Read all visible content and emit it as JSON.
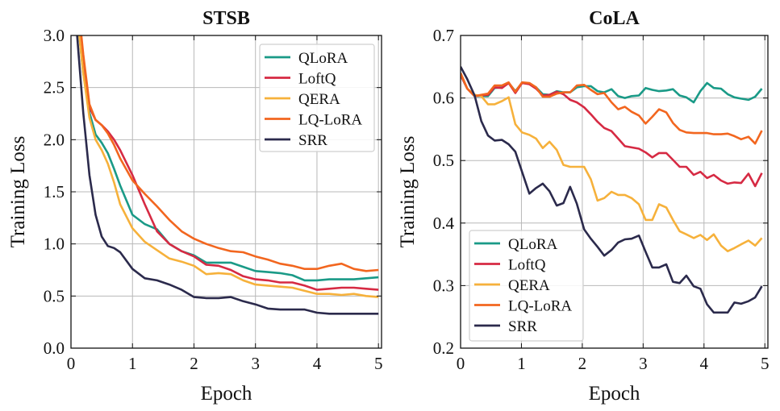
{
  "chart_data": [
    {
      "type": "line",
      "title": "STSB",
      "xlabel": "Epoch",
      "ylabel": "Training Loss",
      "xlim": [
        0,
        5.05
      ],
      "ylim": [
        0,
        3.0
      ],
      "xticks": [
        0,
        1,
        2,
        3,
        4,
        5
      ],
      "xtick_labels": [
        "0",
        "1",
        "2",
        "3",
        "4",
        "5"
      ],
      "yticks": [
        0,
        0.5,
        1.0,
        1.5,
        2.0,
        2.5,
        3.0
      ],
      "ytick_labels": [
        "0.0",
        "0.5",
        "1.0",
        "1.5",
        "2.0",
        "2.5",
        "3.0"
      ],
      "grid": true,
      "legend_position": "top-right",
      "x": [
        0.1,
        0.2,
        0.3,
        0.4,
        0.5,
        0.6,
        0.7,
        0.8,
        1.0,
        1.2,
        1.4,
        1.6,
        1.8,
        2.0,
        2.2,
        2.4,
        2.6,
        2.8,
        3.0,
        3.2,
        3.4,
        3.6,
        3.8,
        4.0,
        4.2,
        4.4,
        4.6,
        4.8,
        5.0
      ],
      "series": [
        {
          "name": "QLoRA",
          "color": "#1a9a87",
          "values": [
            3.2,
            2.64,
            2.26,
            2.05,
            1.97,
            1.87,
            1.72,
            1.56,
            1.28,
            1.19,
            1.14,
            1.0,
            0.93,
            0.89,
            0.82,
            0.82,
            0.82,
            0.78,
            0.74,
            0.73,
            0.72,
            0.7,
            0.65,
            0.65,
            0.66,
            0.66,
            0.66,
            0.67,
            0.68
          ]
        },
        {
          "name": "LoftQ",
          "color": "#d62a43",
          "values": [
            3.3,
            2.77,
            2.31,
            2.19,
            2.14,
            2.08,
            2.0,
            1.9,
            1.66,
            1.38,
            1.12,
            1.0,
            0.93,
            0.88,
            0.8,
            0.79,
            0.75,
            0.69,
            0.66,
            0.65,
            0.63,
            0.63,
            0.6,
            0.56,
            0.57,
            0.58,
            0.58,
            0.57,
            0.56
          ]
        },
        {
          "name": "QERA",
          "color": "#f6b13b",
          "values": [
            3.2,
            2.64,
            2.21,
            2.0,
            1.9,
            1.77,
            1.59,
            1.38,
            1.15,
            1.02,
            0.94,
            0.86,
            0.83,
            0.79,
            0.71,
            0.72,
            0.71,
            0.65,
            0.61,
            0.6,
            0.59,
            0.58,
            0.55,
            0.52,
            0.52,
            0.51,
            0.52,
            0.5,
            0.49
          ]
        },
        {
          "name": "LQ-LoRA",
          "color": "#f2661f",
          "values": [
            3.4,
            2.82,
            2.34,
            2.19,
            2.14,
            2.06,
            1.95,
            1.82,
            1.61,
            1.48,
            1.36,
            1.23,
            1.12,
            1.05,
            1.0,
            0.96,
            0.93,
            0.92,
            0.88,
            0.85,
            0.81,
            0.79,
            0.76,
            0.76,
            0.79,
            0.81,
            0.76,
            0.74,
            0.75
          ]
        },
        {
          "name": "SRR",
          "color": "#2b2a4c",
          "values": [
            3.0,
            2.26,
            1.66,
            1.28,
            1.07,
            0.98,
            0.96,
            0.92,
            0.76,
            0.67,
            0.65,
            0.61,
            0.56,
            0.49,
            0.48,
            0.48,
            0.49,
            0.45,
            0.42,
            0.38,
            0.37,
            0.37,
            0.37,
            0.34,
            0.33,
            0.33,
            0.33,
            0.33,
            0.33
          ]
        }
      ]
    },
    {
      "type": "line",
      "title": "CoLA",
      "xlabel": "Epoch",
      "ylabel": "Training Loss",
      "xlim": [
        0,
        5.05
      ],
      "ylim": [
        0.2,
        0.7
      ],
      "xticks": [
        0,
        1,
        2,
        3,
        4,
        5
      ],
      "xtick_labels": [
        "0",
        "1",
        "2",
        "3",
        "4",
        "5"
      ],
      "yticks": [
        0.2,
        0.3,
        0.4,
        0.5,
        0.6,
        0.7
      ],
      "ytick_labels": [
        "0.2",
        "0.3",
        "0.4",
        "0.5",
        "0.6",
        "0.7"
      ],
      "grid": true,
      "legend_position": "bottom-left",
      "x": [
        0,
        0.11,
        0.23,
        0.34,
        0.45,
        0.56,
        0.68,
        0.79,
        0.9,
        1.01,
        1.13,
        1.24,
        1.35,
        1.46,
        1.58,
        1.69,
        1.8,
        1.91,
        2.03,
        2.14,
        2.25,
        2.36,
        2.48,
        2.59,
        2.7,
        2.81,
        2.93,
        3.04,
        3.15,
        3.26,
        3.38,
        3.49,
        3.6,
        3.71,
        3.83,
        3.94,
        4.05,
        4.16,
        4.28,
        4.39,
        4.5,
        4.61,
        4.73,
        4.84,
        4.95
      ],
      "series": [
        {
          "name": "QLoRA",
          "color": "#1a9a87",
          "values": [
            0.637,
            0.615,
            0.603,
            0.603,
            0.603,
            0.616,
            0.617,
            0.624,
            0.611,
            0.624,
            0.623,
            0.617,
            0.606,
            0.605,
            0.611,
            0.609,
            0.609,
            0.617,
            0.619,
            0.619,
            0.611,
            0.609,
            0.614,
            0.603,
            0.6,
            0.603,
            0.604,
            0.616,
            0.613,
            0.611,
            0.612,
            0.614,
            0.604,
            0.601,
            0.593,
            0.611,
            0.624,
            0.616,
            0.615,
            0.606,
            0.601,
            0.599,
            0.597,
            0.602,
            0.615
          ]
        },
        {
          "name": "LoftQ",
          "color": "#d62a43",
          "values": [
            0.637,
            0.615,
            0.603,
            0.604,
            0.605,
            0.617,
            0.616,
            0.624,
            0.608,
            0.624,
            0.622,
            0.615,
            0.604,
            0.605,
            0.61,
            0.606,
            0.597,
            0.593,
            0.585,
            0.574,
            0.562,
            0.552,
            0.547,
            0.535,
            0.523,
            0.521,
            0.519,
            0.513,
            0.505,
            0.512,
            0.512,
            0.501,
            0.49,
            0.49,
            0.477,
            0.482,
            0.472,
            0.477,
            0.468,
            0.463,
            0.465,
            0.464,
            0.479,
            0.459,
            0.48
          ]
        },
        {
          "name": "QERA",
          "color": "#f6b13b",
          "values": [
            0.64,
            0.615,
            0.605,
            0.603,
            0.59,
            0.59,
            0.595,
            0.601,
            0.558,
            0.545,
            0.541,
            0.535,
            0.52,
            0.53,
            0.517,
            0.493,
            0.49,
            0.49,
            0.49,
            0.47,
            0.436,
            0.44,
            0.45,
            0.445,
            0.445,
            0.44,
            0.43,
            0.405,
            0.405,
            0.43,
            0.425,
            0.405,
            0.387,
            0.382,
            0.376,
            0.381,
            0.373,
            0.382,
            0.364,
            0.355,
            0.36,
            0.366,
            0.372,
            0.364,
            0.376
          ]
        },
        {
          "name": "LQ-LoRA",
          "color": "#f2661f",
          "values": [
            0.64,
            0.615,
            0.603,
            0.605,
            0.607,
            0.62,
            0.62,
            0.625,
            0.61,
            0.625,
            0.624,
            0.617,
            0.602,
            0.602,
            0.607,
            0.609,
            0.609,
            0.62,
            0.621,
            0.613,
            0.606,
            0.608,
            0.593,
            0.582,
            0.586,
            0.578,
            0.572,
            0.559,
            0.57,
            0.582,
            0.577,
            0.56,
            0.549,
            0.545,
            0.544,
            0.544,
            0.544,
            0.542,
            0.542,
            0.543,
            0.539,
            0.534,
            0.538,
            0.527,
            0.548
          ]
        },
        {
          "name": "SRR",
          "color": "#2b2a4c",
          "values": [
            0.65,
            0.63,
            0.604,
            0.563,
            0.54,
            0.532,
            0.533,
            0.526,
            0.514,
            0.482,
            0.447,
            0.456,
            0.463,
            0.451,
            0.428,
            0.432,
            0.458,
            0.431,
            0.39,
            0.375,
            0.362,
            0.348,
            0.357,
            0.369,
            0.374,
            0.375,
            0.38,
            0.354,
            0.329,
            0.329,
            0.334,
            0.306,
            0.304,
            0.316,
            0.299,
            0.295,
            0.27,
            0.257,
            0.257,
            0.257,
            0.273,
            0.271,
            0.275,
            0.281,
            0.299
          ]
        }
      ]
    }
  ]
}
